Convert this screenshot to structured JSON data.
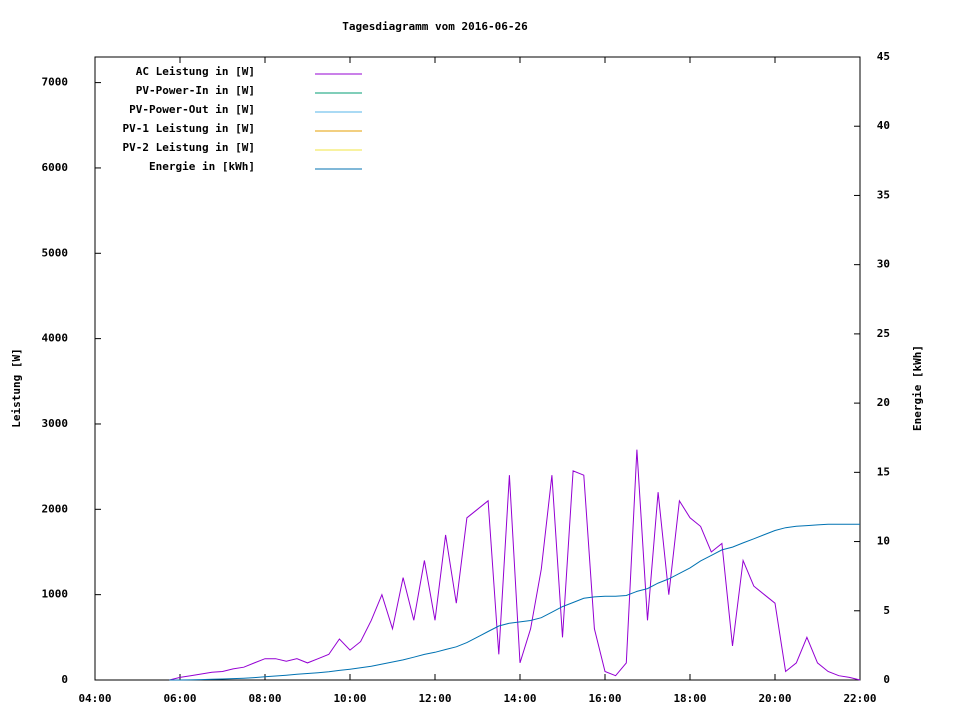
{
  "chart_data": {
    "type": "line",
    "title": "Tagesdiagramm vom 2016-06-26",
    "y_label": "Leistung [W]",
    "y2_label": "Energie [kWh]",
    "x": [
      "05:45",
      "06:00",
      "06:15",
      "06:30",
      "06:45",
      "07:00",
      "07:15",
      "07:30",
      "07:45",
      "08:00",
      "08:15",
      "08:30",
      "08:45",
      "09:00",
      "09:15",
      "09:30",
      "09:45",
      "10:00",
      "10:15",
      "10:30",
      "10:45",
      "11:00",
      "11:15",
      "11:30",
      "11:45",
      "12:00",
      "12:15",
      "12:30",
      "12:45",
      "13:00",
      "13:15",
      "13:30",
      "13:45",
      "14:00",
      "14:15",
      "14:30",
      "14:45",
      "15:00",
      "15:15",
      "15:30",
      "15:45",
      "16:00",
      "16:15",
      "16:30",
      "16:45",
      "17:00",
      "17:15",
      "17:30",
      "17:45",
      "18:00",
      "18:15",
      "18:30",
      "18:45",
      "19:00",
      "19:15",
      "19:30",
      "19:45",
      "20:00",
      "20:15",
      "20:30",
      "20:45",
      "21:00",
      "21:15",
      "21:30",
      "21:45",
      "22:00"
    ],
    "series": [
      {
        "name": "AC Leistung in [W]",
        "color": "#9400d3",
        "values": [
          0,
          30,
          50,
          70,
          90,
          100,
          130,
          150,
          200,
          250,
          250,
          220,
          250,
          200,
          250,
          300,
          480,
          350,
          450,
          700,
          1000,
          600,
          1200,
          700,
          1400,
          700,
          1700,
          900,
          1900,
          2000,
          2100,
          300,
          2400,
          200,
          600,
          1300,
          2400,
          500,
          2450,
          2400,
          600,
          100,
          50,
          200,
          2700,
          700,
          2200,
          1000,
          2100,
          1900,
          1800,
          1500,
          1600,
          400,
          1400,
          1100,
          1000,
          900,
          100,
          200,
          500,
          200,
          100,
          50,
          30,
          0
        ]
      },
      {
        "name": "PV-Power-In in [W]",
        "color": "#009e73",
        "values": [
          null,
          null,
          null,
          null,
          null,
          null,
          null,
          null,
          null,
          null,
          null,
          null,
          null,
          null,
          null,
          null,
          null,
          null,
          null,
          null,
          null,
          null,
          null,
          null,
          null,
          null,
          null,
          null,
          null,
          null,
          null,
          null,
          null,
          null,
          null,
          null,
          null,
          null,
          null,
          null,
          null,
          null,
          null,
          null,
          null,
          null,
          null,
          null,
          null,
          null,
          null,
          null,
          null,
          null,
          null,
          null,
          null,
          null,
          null,
          null,
          null,
          null,
          null,
          null,
          null,
          null
        ]
      },
      {
        "name": "PV-Power-Out in [W]",
        "color": "#56b4e9",
        "values": [
          null,
          null,
          null,
          null,
          null,
          null,
          null,
          null,
          null,
          null,
          null,
          null,
          null,
          null,
          null,
          null,
          null,
          null,
          null,
          null,
          null,
          null,
          null,
          null,
          null,
          null,
          null,
          null,
          null,
          null,
          null,
          null,
          null,
          null,
          null,
          null,
          null,
          null,
          null,
          null,
          null,
          null,
          null,
          null,
          null,
          null,
          null,
          null,
          null,
          null,
          null,
          null,
          null,
          null,
          null,
          null,
          null,
          null,
          null,
          null,
          null,
          null,
          null,
          null,
          null,
          null
        ]
      },
      {
        "name": "PV-1 Leistung in [W]",
        "color": "#e69f00",
        "values": [
          null,
          null,
          null,
          null,
          null,
          null,
          null,
          null,
          null,
          null,
          null,
          null,
          null,
          null,
          null,
          null,
          null,
          null,
          null,
          null,
          null,
          null,
          null,
          null,
          null,
          null,
          null,
          null,
          null,
          null,
          null,
          null,
          null,
          null,
          null,
          null,
          null,
          null,
          null,
          null,
          null,
          null,
          null,
          null,
          null,
          null,
          null,
          null,
          null,
          null,
          null,
          null,
          null,
          null,
          null,
          null,
          null,
          null,
          null,
          null,
          null,
          null,
          null,
          null,
          null,
          null
        ]
      },
      {
        "name": "PV-2 Leistung in [W]",
        "color": "#f0e442",
        "values": [
          null,
          null,
          null,
          null,
          null,
          null,
          null,
          null,
          null,
          null,
          null,
          null,
          null,
          null,
          null,
          null,
          null,
          null,
          null,
          null,
          null,
          null,
          null,
          null,
          null,
          null,
          null,
          null,
          null,
          null,
          null,
          null,
          null,
          null,
          null,
          null,
          null,
          null,
          null,
          null,
          null,
          null,
          null,
          null,
          null,
          null,
          null,
          null,
          null,
          null,
          null,
          null,
          null,
          null,
          null,
          null,
          null,
          null,
          null,
          null,
          null,
          null,
          null,
          null,
          null,
          null
        ]
      },
      {
        "name": "Energie in [kWh]",
        "color": "#0072b2",
        "axis": "y2",
        "values": [
          0,
          0,
          0.01,
          0.03,
          0.05,
          0.07,
          0.1,
          0.13,
          0.17,
          0.23,
          0.29,
          0.35,
          0.41,
          0.47,
          0.53,
          0.6,
          0.69,
          0.78,
          0.88,
          1.0,
          1.15,
          1.3,
          1.45,
          1.65,
          1.85,
          2.0,
          2.2,
          2.4,
          2.7,
          3.1,
          3.5,
          3.9,
          4.1,
          4.2,
          4.3,
          4.5,
          4.9,
          5.3,
          5.6,
          5.9,
          6.0,
          6.05,
          6.05,
          6.1,
          6.4,
          6.6,
          7.0,
          7.3,
          7.7,
          8.1,
          8.6,
          9.0,
          9.4,
          9.6,
          9.9,
          10.2,
          10.5,
          10.8,
          11.0,
          11.1,
          11.15,
          11.2,
          11.25,
          11.25,
          11.25,
          11.25
        ]
      }
    ],
    "xlim": [
      "04:00",
      "22:00"
    ],
    "xticks": [
      "04:00",
      "06:00",
      "08:00",
      "10:00",
      "12:00",
      "14:00",
      "16:00",
      "18:00",
      "20:00",
      "22:00"
    ],
    "ylim": [
      0,
      7300
    ],
    "yticks": [
      0,
      1000,
      2000,
      3000,
      4000,
      5000,
      6000,
      7000
    ],
    "y2lim": [
      0,
      45
    ],
    "y2ticks": [
      0,
      5,
      10,
      15,
      20,
      25,
      30,
      35,
      40,
      45
    ],
    "legend": "top-left"
  }
}
